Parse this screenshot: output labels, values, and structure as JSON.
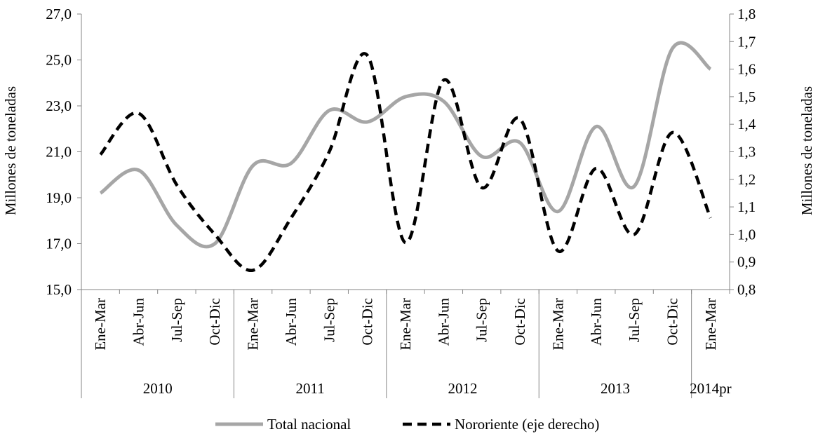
{
  "chart_data": {
    "type": "line",
    "title": "",
    "groups": [
      {
        "label": "2010",
        "count": 4
      },
      {
        "label": "2011",
        "count": 4
      },
      {
        "label": "2012",
        "count": 4
      },
      {
        "label": "2013",
        "count": 4
      },
      {
        "label": "2014pr",
        "count": 1
      }
    ],
    "categories": [
      "Ene-Mar",
      "Abr-Jun",
      "Jul-Sep",
      "Oct-Dic",
      "Ene-Mar",
      "Abr-Jun",
      "Jul-Sep",
      "Oct-Dic",
      "Ene-Mar",
      "Abr-Jun",
      "Jul-Sep",
      "Oct-Dic",
      "Ene-Mar",
      "Abr-Jun",
      "Jul-Sep",
      "Oct-Dic",
      "Ene-Mar"
    ],
    "y_left": {
      "label": "Millones de toneladas",
      "min": 15,
      "max": 27,
      "step": 2,
      "ticks": [
        "15,0",
        "17,0",
        "19,0",
        "21,0",
        "23,0",
        "25,0",
        "27,0"
      ]
    },
    "y_right": {
      "label": "Millones de toneladas",
      "min": 0.8,
      "max": 1.8,
      "step": 0.1,
      "ticks": [
        "0,8",
        "0,9",
        "1,0",
        "1,1",
        "1,2",
        "1,3",
        "1,4",
        "1,5",
        "1,6",
        "1,7",
        "1,8"
      ]
    },
    "series": [
      {
        "name": "Total nacional",
        "axis": "left",
        "color": "#a6a6a6",
        "dash": "solid",
        "values": [
          19.2,
          20.2,
          17.8,
          17.0,
          20.4,
          20.5,
          22.8,
          22.3,
          23.4,
          23.2,
          20.8,
          21.4,
          18.4,
          22.1,
          19.5,
          25.5,
          24.6
        ]
      },
      {
        "name": "Nororiente (eje derecho)",
        "axis": "right",
        "color": "#000000",
        "dash": "dashed",
        "values": [
          1.29,
          1.44,
          1.18,
          1.0,
          0.87,
          1.06,
          1.3,
          1.65,
          0.97,
          1.56,
          1.17,
          1.42,
          0.94,
          1.24,
          1.0,
          1.37,
          1.06
        ]
      }
    ],
    "legend_position": "bottom",
    "grid": false
  }
}
